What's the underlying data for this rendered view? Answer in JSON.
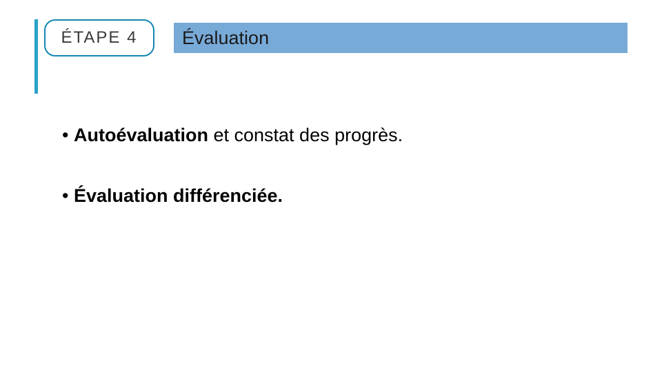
{
  "colors": {
    "accent": "#2aa2c9",
    "border": "#1286b1",
    "titlebar": "#78aad8"
  },
  "step": {
    "label": "ÉTAPE  4"
  },
  "title": "Évaluation",
  "bullets": [
    {
      "bold": "Autoévaluation",
      "rest": " et constat des progrès."
    },
    {
      "bold": "Évaluation différenciée.",
      "rest": ""
    }
  ]
}
